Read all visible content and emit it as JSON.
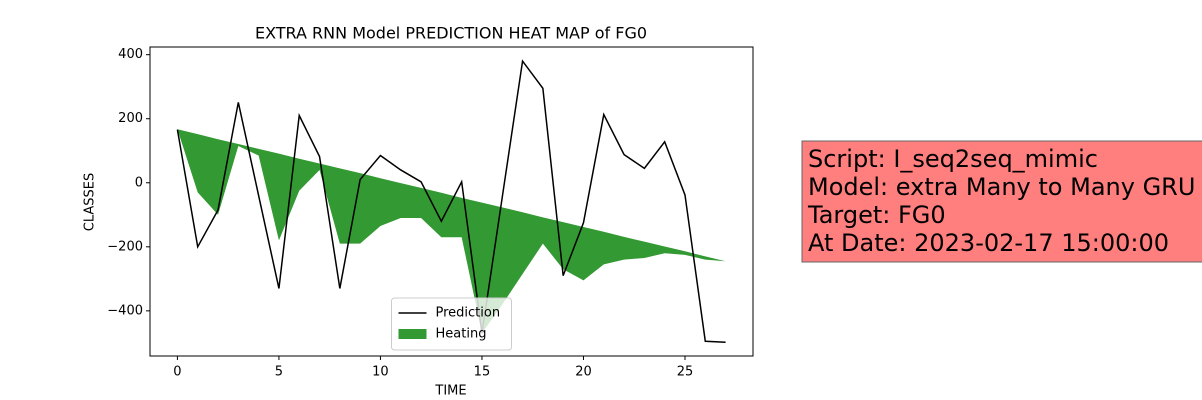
{
  "chart_data": {
    "type": "line",
    "title": "EXTRA RNN Model PREDICTION HEAT MAP of FG0",
    "xlabel": "TIME",
    "ylabel": "CLASSES",
    "x": [
      0,
      1,
      2,
      3,
      4,
      5,
      6,
      7,
      8,
      9,
      10,
      11,
      12,
      13,
      14,
      15,
      16,
      17,
      18,
      19,
      20,
      21,
      22,
      23,
      24,
      25,
      26,
      27
    ],
    "series": [
      {
        "name": "Prediction",
        "color": "#000000",
        "style": "line",
        "values": [
          166,
          -200,
          -85,
          251,
          -40,
          -330,
          210,
          82,
          -330,
          10,
          85,
          40,
          3,
          -120,
          3,
          -470,
          -45,
          380,
          295,
          -290,
          -125,
          213,
          88,
          45,
          128,
          -38,
          -495,
          -498
        ]
      },
      {
        "name": "Heating",
        "color": "#008000",
        "opacity": 0.8,
        "style": "fill",
        "values": [
          167,
          152,
          136,
          121,
          106,
          91,
          75,
          60,
          45,
          30,
          14,
          -1,
          -16,
          -31,
          -47,
          -62,
          -77,
          -92,
          -108,
          -123,
          -138,
          -153,
          -169,
          -184,
          -199,
          -214,
          -230,
          -245
        ],
        "lower": [
          167,
          -30,
          -100,
          115,
          85,
          -180,
          -25,
          40,
          -190,
          -190,
          -135,
          -110,
          -110,
          -170,
          -170,
          -470,
          -380,
          -285,
          -190,
          -270,
          -305,
          -255,
          -240,
          -235,
          -220,
          -225,
          -240,
          -245
        ]
      }
    ],
    "xlim": [
      -1.35,
      28.35
    ],
    "ylim": [
      -541,
      424
    ],
    "xticks": [
      0,
      5,
      10,
      15,
      20,
      25
    ],
    "yticks": [
      {
        "value": -400,
        "label": "−400"
      },
      {
        "value": -200,
        "label": "−200"
      },
      0,
      200,
      400
    ],
    "legend": "lower center",
    "annotation": {
      "lines": [
        "Script: I_seq2seq_mimic",
        "Model: extra Many to Many GRU",
        "Target: FG0",
        "At Date: 2023-02-17 15:00:00"
      ],
      "background": "#ff7f7f"
    }
  }
}
